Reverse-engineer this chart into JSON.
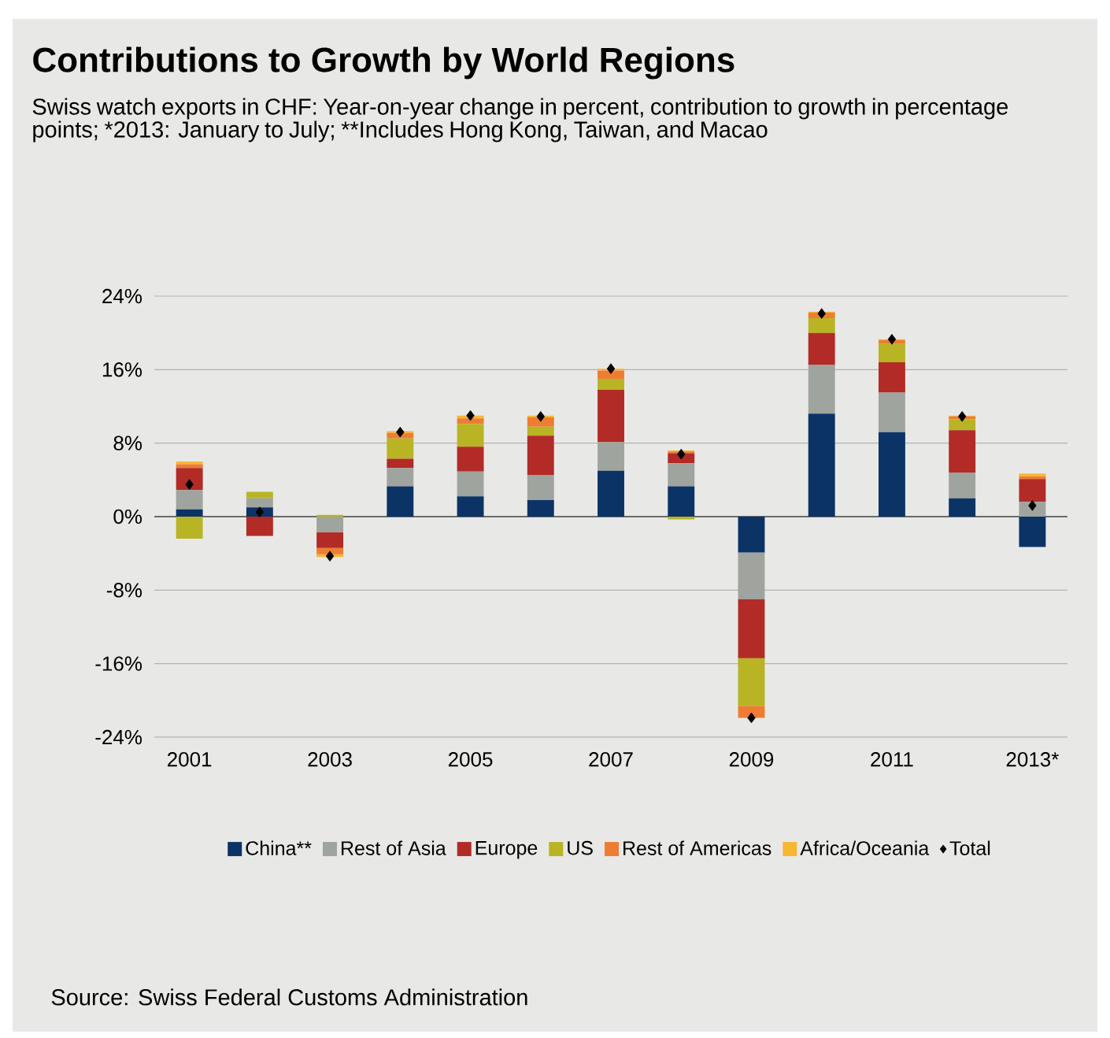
{
  "chart_data": {
    "type": "bar",
    "stacked": true,
    "title": "Contributions to Growth by World Regions",
    "subtitle": "Swiss watch exports in CHF: Year-on-year change in percent, contribution to growth in percentage points; *2013: January to July; **Includes Hong Kong, Taiwan, and Macao",
    "categories": [
      "2001",
      null,
      "2003",
      null,
      "2005",
      null,
      "2007",
      null,
      "2009",
      null,
      "2011",
      null,
      "2013*"
    ],
    "series": [
      {
        "name": "China**",
        "color": "#0b3366",
        "values": [
          0.8,
          1.0,
          0,
          3.3,
          2.2,
          1.8,
          5.0,
          3.3,
          -3.9,
          11.2,
          9.2,
          2.0,
          -3.3
        ]
      },
      {
        "name": "Rest of Asia",
        "color": "#a0a49e",
        "values": [
          2.1,
          1.0,
          -1.7,
          2.0,
          2.7,
          2.7,
          3.1,
          2.5,
          -5.1,
          5.3,
          4.3,
          2.8,
          1.6
        ]
      },
      {
        "name": "Europe",
        "color": "#b22b26",
        "values": [
          2.4,
          -2.1,
          -1.7,
          1.0,
          2.7,
          4.3,
          5.7,
          1.1,
          -6.4,
          3.5,
          3.3,
          4.6,
          2.5
        ]
      },
      {
        "name": "US",
        "color": "#b8b424",
        "values": [
          -2.4,
          0.7,
          0.2,
          2.2,
          2.5,
          1.0,
          1.2,
          -0.3,
          -5.2,
          1.6,
          2.0,
          1.2,
          0
        ]
      },
      {
        "name": "Rest of Americas",
        "color": "#ee7d33",
        "values": [
          0.4,
          0,
          -0.7,
          0.6,
          0.6,
          1.0,
          0.9,
          0.2,
          -1.3,
          0.6,
          0.4,
          0.3,
          0.3
        ]
      },
      {
        "name": "Africa/Oceania",
        "color": "#f7b733",
        "values": [
          0.3,
          0,
          -0.3,
          0.2,
          0.3,
          0.2,
          0.2,
          0.1,
          0,
          0.1,
          0.1,
          0.1,
          0.3
        ]
      },
      {
        "name": "Total",
        "type": "scatter",
        "marker": "diamond",
        "color": "#000000",
        "values": [
          3.5,
          0.5,
          -4.3,
          9.2,
          11.0,
          10.9,
          16.1,
          6.8,
          -21.9,
          22.1,
          19.3,
          10.9,
          1.2
        ]
      }
    ],
    "ylim": [
      -24,
      24
    ],
    "yticks": [
      {
        "value": -24,
        "label": "-24%"
      },
      {
        "value": -16,
        "label": "-16%"
      },
      {
        "value": -8,
        "label": "-8%"
      },
      {
        "value": 0,
        "label": "0%"
      },
      {
        "value": 8,
        "label": "8%"
      },
      {
        "value": 16,
        "label": "16%"
      },
      {
        "value": 24,
        "label": "24%"
      }
    ],
    "grid": "y",
    "legend": "bottom",
    "annotations": [
      "Source: Swiss Federal Customs Administration"
    ]
  }
}
